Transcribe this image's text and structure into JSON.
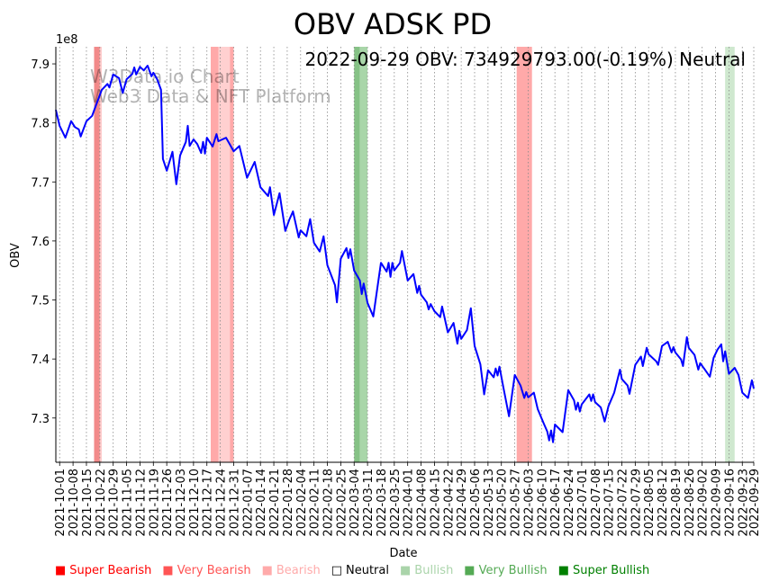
{
  "chart_data": {
    "type": "line",
    "title": "OBV ADSK PD",
    "annotation": "2022-09-29 OBV: 734929793.00(-0.19%) Neutral",
    "watermark": [
      "W3Data.io Chart",
      "Web3 Data & NFT Platform"
    ],
    "xlabel": "Date",
    "ylabel": "OBV",
    "y_multiplier_label": "1e8",
    "x_start_date": "2021-10-01",
    "x_unit": "days since x_start_date",
    "xlim": [
      -2,
      363
    ],
    "ylim": [
      7.225,
      7.929
    ],
    "yticks": [
      "7.3",
      "7.4",
      "7.5",
      "7.6",
      "7.7",
      "7.8",
      "7.9"
    ],
    "xticks": [
      "2021-10-01",
      "2021-10-08",
      "2021-10-15",
      "2021-10-22",
      "2021-10-29",
      "2021-11-05",
      "2021-11-12",
      "2021-11-19",
      "2021-11-26",
      "2021-12-03",
      "2021-12-10",
      "2021-12-17",
      "2021-12-24",
      "2021-12-31",
      "2022-01-07",
      "2022-01-14",
      "2022-01-21",
      "2022-01-28",
      "2022-02-04",
      "2022-02-11",
      "2022-02-18",
      "2022-02-25",
      "2022-03-04",
      "2022-03-11",
      "2022-03-18",
      "2022-03-25",
      "2022-04-01",
      "2022-04-08",
      "2022-04-15",
      "2022-04-22",
      "2022-04-29",
      "2022-05-06",
      "2022-05-13",
      "2022-05-20",
      "2022-05-27",
      "2022-06-03",
      "2022-06-10",
      "2022-06-17",
      "2022-06-24",
      "2022-07-01",
      "2022-07-08",
      "2022-07-15",
      "2022-07-22",
      "2022-07-29",
      "2022-08-05",
      "2022-08-12",
      "2022-08-19",
      "2022-08-26",
      "2022-09-02",
      "2022-09-09",
      "2022-09-16",
      "2022-09-23",
      "2022-09-29"
    ],
    "grid": "vertical dotted",
    "series": [
      {
        "name": "OBV",
        "color": "#0000ff",
        "x": [
          -2,
          0,
          3,
          6,
          8,
          10,
          11,
          14,
          17,
          19,
          22,
          25,
          26,
          28,
          31,
          33,
          35,
          38,
          39,
          40,
          42,
          44,
          46,
          48,
          49,
          51,
          53,
          54,
          56,
          59,
          61,
          63,
          66,
          67,
          68,
          70,
          72,
          74,
          75,
          76,
          77,
          80,
          82,
          83,
          87,
          91,
          94,
          98,
          102,
          105,
          109,
          110,
          112,
          115,
          118,
          120,
          122,
          125,
          126,
          129,
          131,
          133,
          136,
          138,
          140,
          144,
          145,
          147,
          150,
          151,
          152,
          154,
          157,
          158,
          159,
          161,
          164,
          168,
          171,
          172,
          173,
          174,
          175,
          178,
          179,
          182,
          185,
          187,
          188,
          189,
          192,
          193,
          194,
          196,
          199,
          200,
          203,
          206,
          208,
          209,
          210,
          213,
          215,
          217,
          220,
          222,
          224,
          227,
          228,
          229,
          230,
          232,
          235,
          238,
          241,
          243,
          244,
          245,
          248,
          250,
          253,
          255,
          256,
          257,
          258,
          259,
          263,
          266,
          269,
          270,
          271,
          272,
          273,
          277,
          278,
          279,
          280,
          283,
          285,
          287,
          290,
          293,
          294,
          297,
          298,
          301,
          304,
          305,
          307,
          308,
          312,
          313,
          315,
          318,
          320,
          321,
          322,
          325,
          326,
          328,
          329,
          332,
          334,
          335,
          337,
          340,
          342,
          344,
          346,
          347,
          348,
          350,
          353,
          355,
          357,
          360,
          362,
          363
        ],
        "y": [
          7.822,
          7.795,
          7.775,
          7.803,
          7.793,
          7.789,
          7.777,
          7.803,
          7.812,
          7.83,
          7.856,
          7.866,
          7.86,
          7.882,
          7.876,
          7.851,
          7.874,
          7.883,
          7.894,
          7.882,
          7.895,
          7.889,
          7.897,
          7.879,
          7.885,
          7.874,
          7.856,
          7.739,
          7.719,
          7.751,
          7.696,
          7.745,
          7.768,
          7.795,
          7.761,
          7.772,
          7.764,
          7.749,
          7.768,
          7.748,
          7.775,
          7.76,
          7.781,
          7.769,
          7.775,
          7.752,
          7.761,
          7.707,
          7.734,
          7.691,
          7.676,
          7.691,
          7.644,
          7.681,
          7.617,
          7.635,
          7.65,
          7.606,
          7.618,
          7.608,
          7.637,
          7.597,
          7.582,
          7.608,
          7.559,
          7.525,
          7.496,
          7.57,
          7.588,
          7.571,
          7.586,
          7.55,
          7.533,
          7.51,
          7.528,
          7.495,
          7.472,
          7.563,
          7.548,
          7.563,
          7.539,
          7.563,
          7.55,
          7.563,
          7.583,
          7.533,
          7.544,
          7.512,
          7.524,
          7.509,
          7.496,
          7.484,
          7.493,
          7.481,
          7.471,
          7.489,
          7.445,
          7.461,
          7.426,
          7.448,
          7.434,
          7.449,
          7.486,
          7.422,
          7.391,
          7.34,
          7.381,
          7.369,
          7.384,
          7.372,
          7.387,
          7.353,
          7.303,
          7.373,
          7.355,
          7.334,
          7.344,
          7.335,
          7.343,
          7.315,
          7.292,
          7.277,
          7.262,
          7.279,
          7.259,
          7.289,
          7.276,
          7.347,
          7.33,
          7.314,
          7.326,
          7.311,
          7.323,
          7.34,
          7.329,
          7.34,
          7.327,
          7.318,
          7.294,
          7.32,
          7.343,
          7.382,
          7.366,
          7.355,
          7.341,
          7.39,
          7.404,
          7.388,
          7.419,
          7.408,
          7.396,
          7.39,
          7.422,
          7.429,
          7.411,
          7.42,
          7.411,
          7.399,
          7.388,
          7.437,
          7.419,
          7.407,
          7.382,
          7.393,
          7.384,
          7.37,
          7.402,
          7.416,
          7.425,
          7.396,
          7.413,
          7.375,
          7.385,
          7.373,
          7.343,
          7.334,
          7.364,
          7.35
        ]
      }
    ],
    "signal_bands": [
      {
        "from": 18,
        "to": 21,
        "signal": "Very Bearish",
        "color": "#f28a8a"
      },
      {
        "from": 21,
        "to": 22,
        "signal": "Bearish",
        "color": "#ffcaca"
      },
      {
        "from": 79,
        "to": 83,
        "signal": "Very Bearish",
        "color": "#ffa9a9"
      },
      {
        "from": 83,
        "to": 89,
        "signal": "Bearish",
        "color": "#ffd0d0"
      },
      {
        "from": 89,
        "to": 91,
        "signal": "Very Bearish",
        "color": "#ffa9a9"
      },
      {
        "from": 154,
        "to": 157,
        "signal": "Very Bullish",
        "color": "#86c286"
      },
      {
        "from": 157,
        "to": 161,
        "signal": "Bullish",
        "color": "#a9d6a9"
      },
      {
        "from": 239,
        "to": 247,
        "signal": "Very Bearish",
        "color": "#ffa9a9"
      },
      {
        "from": 348,
        "to": 353,
        "signal": "Bullish",
        "color": "#cfe8cf"
      }
    ],
    "legend": {
      "placement": "bottom",
      "items": [
        {
          "label": "Super Bearish",
          "color": "#ff0000",
          "marker": "■"
        },
        {
          "label": "Very Bearish",
          "color": "#ff5555",
          "marker": "■"
        },
        {
          "label": "Bearish",
          "color": "#ffaaaa",
          "marker": "■"
        },
        {
          "label": "Neutral",
          "color": "#000000",
          "marker": "□"
        },
        {
          "label": "Bullish",
          "color": "#aad4aa",
          "marker": "■"
        },
        {
          "label": "Very Bullish",
          "color": "#55aa55",
          "marker": "■"
        },
        {
          "label": "Super Bullish",
          "color": "#008000",
          "marker": "■"
        }
      ]
    }
  }
}
